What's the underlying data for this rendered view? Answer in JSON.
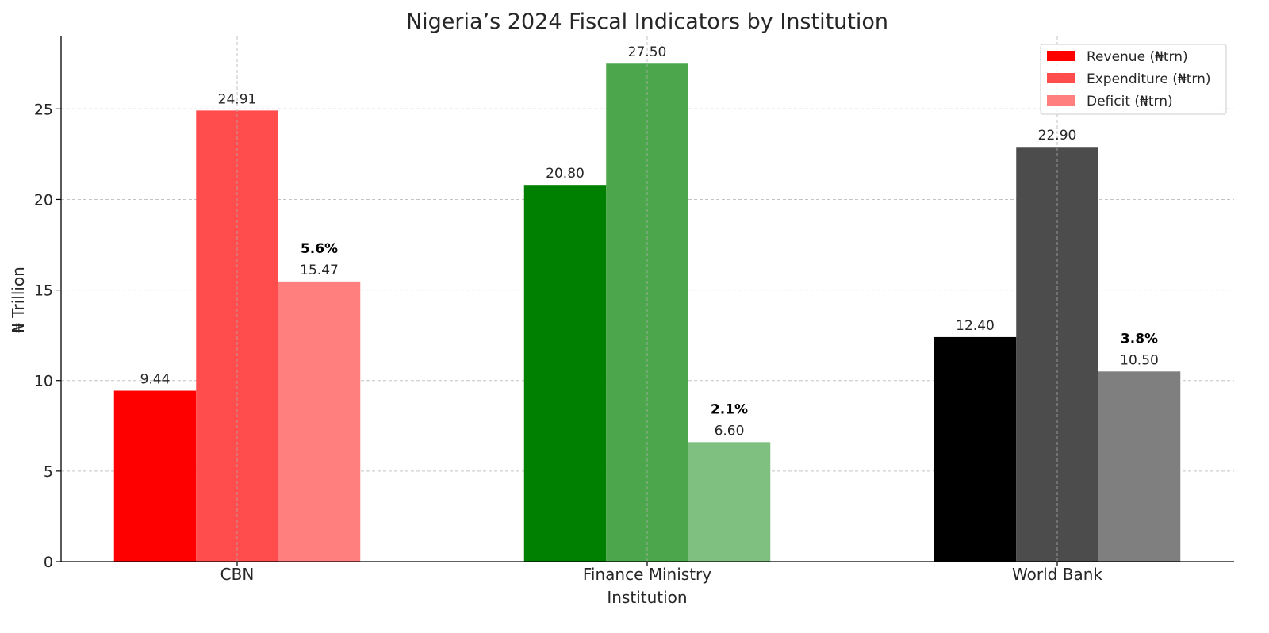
{
  "chart_data": {
    "type": "bar",
    "title": "Nigeria’s 2024 Fiscal Indicators by Institution",
    "xlabel": "Institution",
    "ylabel": "₦ Trillion",
    "ylim": [
      0,
      29
    ],
    "yticks": [
      0,
      5,
      10,
      15,
      20,
      25
    ],
    "grid": true,
    "legend_position": "top-right",
    "categories": [
      "CBN",
      "Finance Ministry",
      "World Bank"
    ],
    "series": [
      {
        "name": "Revenue (₦trn)",
        "values": [
          9.44,
          20.8,
          12.4
        ],
        "labels": [
          "9.44",
          "20.80",
          "12.40"
        ]
      },
      {
        "name": "Expenditure (₦trn)",
        "values": [
          24.91,
          27.5,
          22.9
        ],
        "labels": [
          "24.91",
          "27.50",
          "22.90"
        ]
      },
      {
        "name": "Deficit (₦trn)",
        "values": [
          15.47,
          6.6,
          10.5
        ],
        "labels": [
          "15.47",
          "6.60",
          "10.50"
        ]
      }
    ],
    "deficit_pct_labels": [
      "5.6%",
      "2.1%",
      "3.8%"
    ],
    "bar_colors": [
      [
        "#ff0000",
        "#ff4c4c",
        "#ff7f7f"
      ],
      [
        "#008000",
        "#4ca64c",
        "#7fbf7f"
      ],
      [
        "#000000",
        "#4c4c4c",
        "#7f7f7f"
      ]
    ],
    "legend_colors": [
      "#ff0000",
      "#ff4c4c",
      "#ff7f7f"
    ]
  }
}
